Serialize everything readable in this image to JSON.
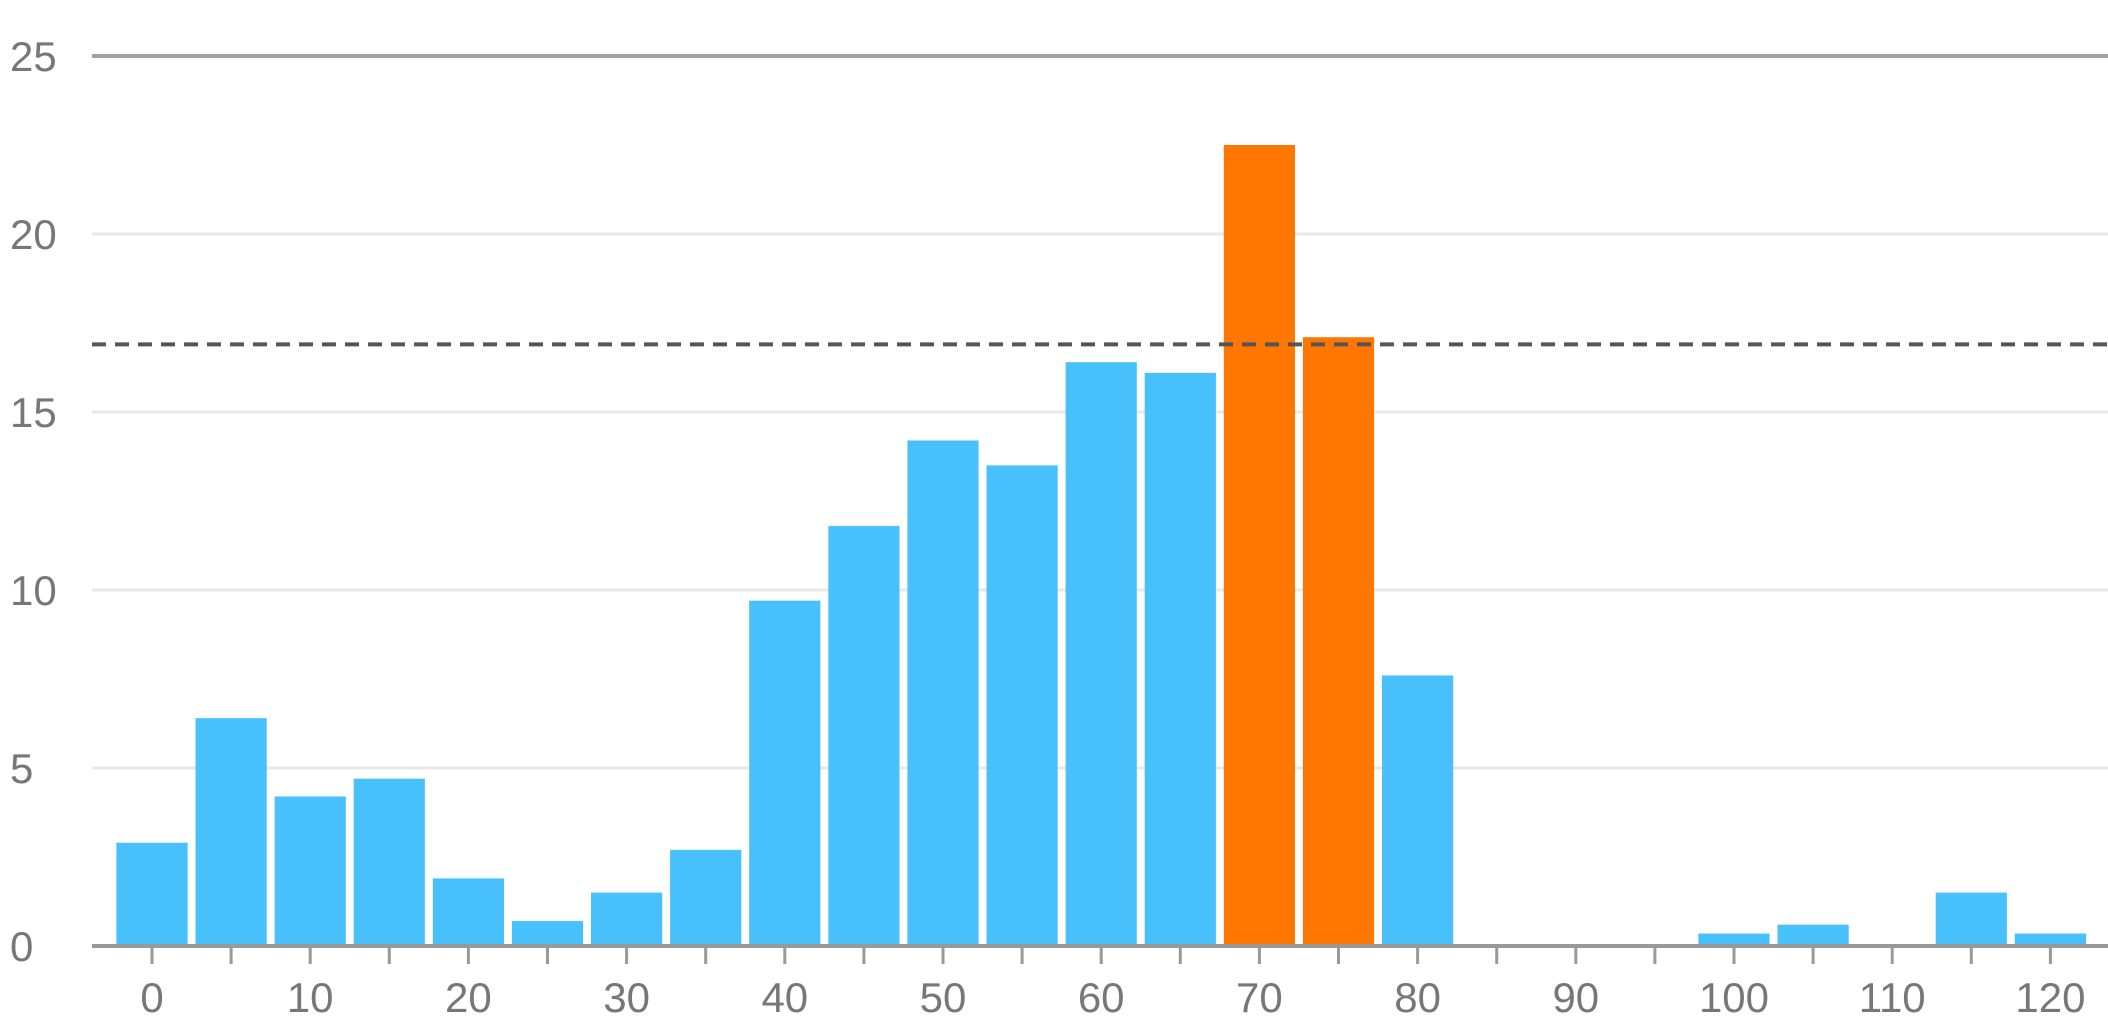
{
  "chart_data": {
    "type": "bar",
    "title": "",
    "xlabel": "",
    "ylabel": "",
    "x_ticks": [
      0,
      10,
      20,
      30,
      40,
      50,
      60,
      70,
      80,
      90,
      100,
      110,
      120
    ],
    "y_ticks": [
      0,
      5,
      10,
      15,
      20,
      25
    ],
    "xlim": [
      -5,
      124
    ],
    "ylim": [
      0,
      25
    ],
    "grid": true,
    "reference_line": {
      "value": 16.9,
      "style": "dashed",
      "color": "#555555"
    },
    "bar_width": 4.5,
    "bars": [
      {
        "x": 0,
        "value": 2.9,
        "highlight": false
      },
      {
        "x": 5,
        "value": 6.4,
        "highlight": false
      },
      {
        "x": 10,
        "value": 4.2,
        "highlight": false
      },
      {
        "x": 15,
        "value": 4.7,
        "highlight": false
      },
      {
        "x": 20,
        "value": 1.9,
        "highlight": false
      },
      {
        "x": 25,
        "value": 0.7,
        "highlight": false
      },
      {
        "x": 30,
        "value": 1.5,
        "highlight": false
      },
      {
        "x": 35,
        "value": 2.7,
        "highlight": false
      },
      {
        "x": 40,
        "value": 9.7,
        "highlight": false
      },
      {
        "x": 45,
        "value": 11.8,
        "highlight": false
      },
      {
        "x": 50,
        "value": 14.2,
        "highlight": false
      },
      {
        "x": 55,
        "value": 13.5,
        "highlight": false
      },
      {
        "x": 60,
        "value": 16.4,
        "highlight": false
      },
      {
        "x": 65,
        "value": 16.1,
        "highlight": false
      },
      {
        "x": 70,
        "value": 22.5,
        "highlight": true
      },
      {
        "x": 75,
        "value": 17.1,
        "highlight": true
      },
      {
        "x": 80,
        "value": 7.6,
        "highlight": false
      },
      {
        "x": 85,
        "value": 0,
        "highlight": false
      },
      {
        "x": 90,
        "value": 0,
        "highlight": false
      },
      {
        "x": 95,
        "value": 0,
        "highlight": false
      },
      {
        "x": 100,
        "value": 0.35,
        "highlight": false
      },
      {
        "x": 105,
        "value": 0.6,
        "highlight": false
      },
      {
        "x": 110,
        "value": 0,
        "highlight": false
      },
      {
        "x": 115,
        "value": 1.5,
        "highlight": false
      },
      {
        "x": 120,
        "value": 0.35,
        "highlight": false
      }
    ],
    "colors": {
      "bar": "#48c0fc",
      "highlight": "#ff7600",
      "grid": "#e8e8e8",
      "top_line": "#a0a0a0",
      "axis": "#999999",
      "tick_label": "#777777"
    }
  }
}
